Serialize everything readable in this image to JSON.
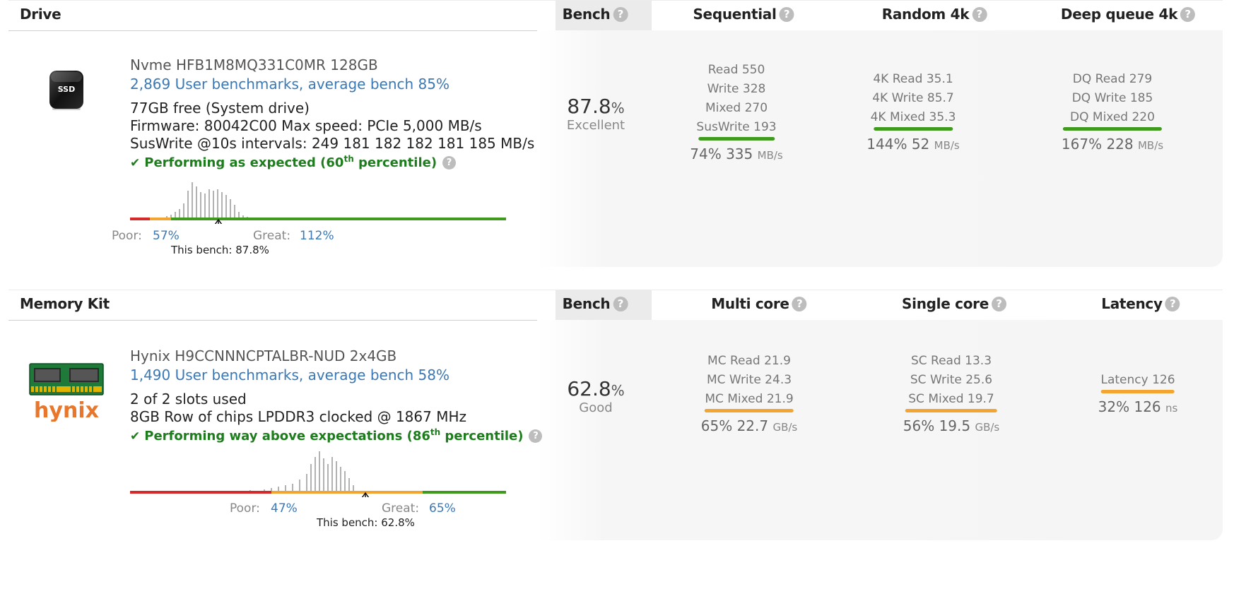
{
  "drive": {
    "header": {
      "title": "Drive",
      "bench": "Bench",
      "col1": "Sequential",
      "col2": "Random 4k",
      "col3": "Deep queue 4k",
      "help": "?"
    },
    "icon_label": "SSD",
    "name": "Nvme HFB1M8MQ331C0MR 128GB",
    "user_benchmarks": "2,869 User benchmarks, average bench 85%",
    "info1": "77GB free (System drive)",
    "info2": "Firmware: 80042C00 Max speed: PCIe 5,000 MB/s",
    "info3": "SusWrite @10s intervals: 249 181 182 182 181 185 MB/s",
    "perf_pre": "Performing as expected (60",
    "perf_sup": "th",
    "perf_post": " percentile)",
    "bench_value": "87.8",
    "bench_pct": "%",
    "bench_label": "Excellent",
    "seq": {
      "lines": [
        "Read 550",
        "Write 328",
        "Mixed 270",
        "SusWrite 193"
      ],
      "sum_pct": "74%",
      "sum_val": "335",
      "unit": "MB/s"
    },
    "rnd": {
      "lines": [
        "4K Read 35.1",
        "4K Write 85.7",
        "4K Mixed 35.3"
      ],
      "sum_pct": "144%",
      "sum_val": "52",
      "unit": "MB/s"
    },
    "dq": {
      "lines": [
        "DQ Read 279",
        "DQ Write 185",
        "DQ Mixed 220"
      ],
      "sum_pct": "167%",
      "sum_val": "228",
      "unit": "MB/s"
    },
    "hist": {
      "poor_label": "Poor:",
      "poor_value": "57%",
      "great_label": "Great:",
      "great_value": "112%",
      "this_bench": "This bench: 87.8%",
      "marker_fraction": 0.235
    }
  },
  "memory": {
    "header": {
      "title": "Memory Kit",
      "bench": "Bench",
      "col1": "Multi core",
      "col2": "Single core",
      "col3": "Latency",
      "help": "?"
    },
    "logo_text": "hynix",
    "name": "Hynix H9CCNNNCPTALBR-NUD 2x4GB",
    "user_benchmarks": "1,490 User benchmarks, average bench 58%",
    "info1": "2 of 2 slots used",
    "info2": "8GB Row of chips LPDDR3 clocked @ 1867 MHz",
    "perf_pre": "Performing way above expectations (86",
    "perf_sup": "th",
    "perf_post": " percentile)",
    "bench_value": "62.8",
    "bench_pct": "%",
    "bench_label": "Good",
    "mc": {
      "lines": [
        "MC Read 21.9",
        "MC Write 24.3",
        "MC Mixed 21.9"
      ],
      "sum_pct": "65%",
      "sum_val": "22.7",
      "unit": "GB/s"
    },
    "sc": {
      "lines": [
        "SC Read 13.3",
        "SC Write 25.6",
        "SC Mixed 19.7"
      ],
      "sum_pct": "56%",
      "sum_val": "19.5",
      "unit": "GB/s"
    },
    "lat": {
      "lines": [
        "Latency 126"
      ],
      "sum_pct": "32%",
      "sum_val": "126",
      "unit": "ns"
    },
    "hist": {
      "poor_label": "Poor:",
      "poor_value": "47%",
      "great_label": "Great:",
      "great_value": "65%",
      "this_bench": "This bench: 62.8%",
      "marker_fraction": 0.625
    }
  },
  "colors": {
    "good": "#3f9a1e",
    "ok": "#f2a530",
    "bad": "#d62a2a",
    "link": "#3a78b6"
  }
}
